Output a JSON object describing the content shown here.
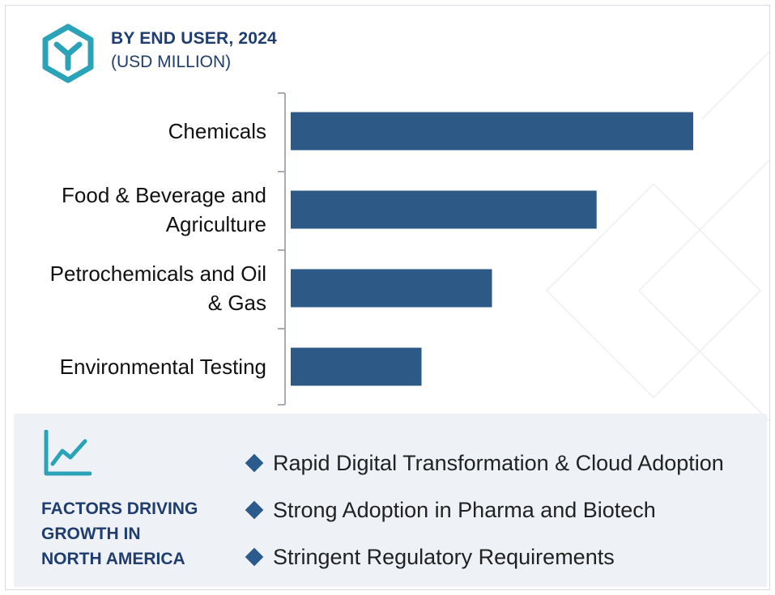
{
  "header": {
    "title": "BY END USER, 2024",
    "subtitle": "(USD MILLION)",
    "logo_icon": "hexagon-y-logo-icon"
  },
  "chart_data": {
    "type": "bar",
    "orientation": "horizontal",
    "title": "BY END USER, 2024",
    "subtitle": "(USD MILLION)",
    "categories": [
      [
        "Chemicals"
      ],
      [
        "Food & Beverage and",
        "Agriculture"
      ],
      [
        "Petrochemicals and Oil",
        "& Gas"
      ],
      [
        "Environmental Testing"
      ]
    ],
    "values": [
      100,
      76,
      50,
      32.5
    ],
    "value_units": "relative (no axis values printed)",
    "xlim": [
      0,
      100
    ],
    "bar_color": "#2c5986",
    "grid": false,
    "legend": "none"
  },
  "panel": {
    "title_lines": [
      "FACTORS DRIVING",
      "GROWTH IN",
      "NORTH AMERICA"
    ],
    "icon": "trend-chart-icon",
    "factors": [
      "Rapid Digital Transformation & Cloud Adoption",
      "Strong Adoption in Pharma and Biotech",
      "Stringent Regulatory Requirements"
    ]
  },
  "colors": {
    "accent": "#2aa3b8",
    "navy": "#1f3d6e",
    "bar": "#2c5986",
    "panel_bg": "#eef1f6"
  }
}
